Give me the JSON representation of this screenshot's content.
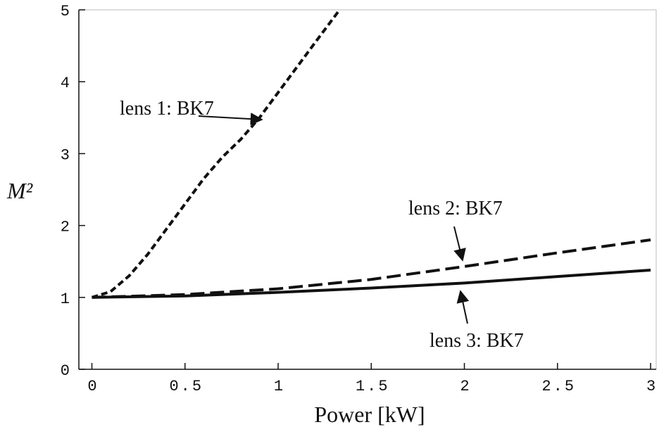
{
  "chart_data": {
    "type": "line",
    "x_label": "Power [kW]",
    "y_label": "M²",
    "xlim": [
      -0.07,
      3.03
    ],
    "ylim": [
      0,
      5
    ],
    "xticks": [
      0,
      0.5,
      1,
      1.5,
      2,
      2.5,
      3
    ],
    "yticks": [
      0,
      1,
      2,
      3,
      4,
      5
    ],
    "series": [
      {
        "name": "lens 1: BK7",
        "color": "#111111",
        "dash": "short",
        "x": [
          0,
          0.1,
          0.2,
          0.3,
          0.4,
          0.5,
          0.6,
          0.7,
          0.8,
          0.9,
          1.0,
          1.1,
          1.2,
          1.33
        ],
        "values": [
          1,
          1.08,
          1.3,
          1.6,
          1.95,
          2.3,
          2.65,
          2.95,
          3.2,
          3.5,
          3.85,
          4.2,
          4.55,
          5
        ]
      },
      {
        "name": "lens 2: BK7",
        "color": "#111111",
        "dash": "long",
        "x": [
          0,
          0.5,
          1,
          1.5,
          2,
          2.5,
          3
        ],
        "values": [
          1,
          1.04,
          1.12,
          1.25,
          1.43,
          1.62,
          1.8
        ]
      },
      {
        "name": "lens 3: BK7",
        "color": "#111111",
        "dash": "solid",
        "x": [
          0,
          0.5,
          1,
          1.5,
          2,
          2.5,
          3
        ],
        "values": [
          1,
          1.02,
          1.07,
          1.13,
          1.2,
          1.29,
          1.38
        ]
      }
    ]
  }
}
